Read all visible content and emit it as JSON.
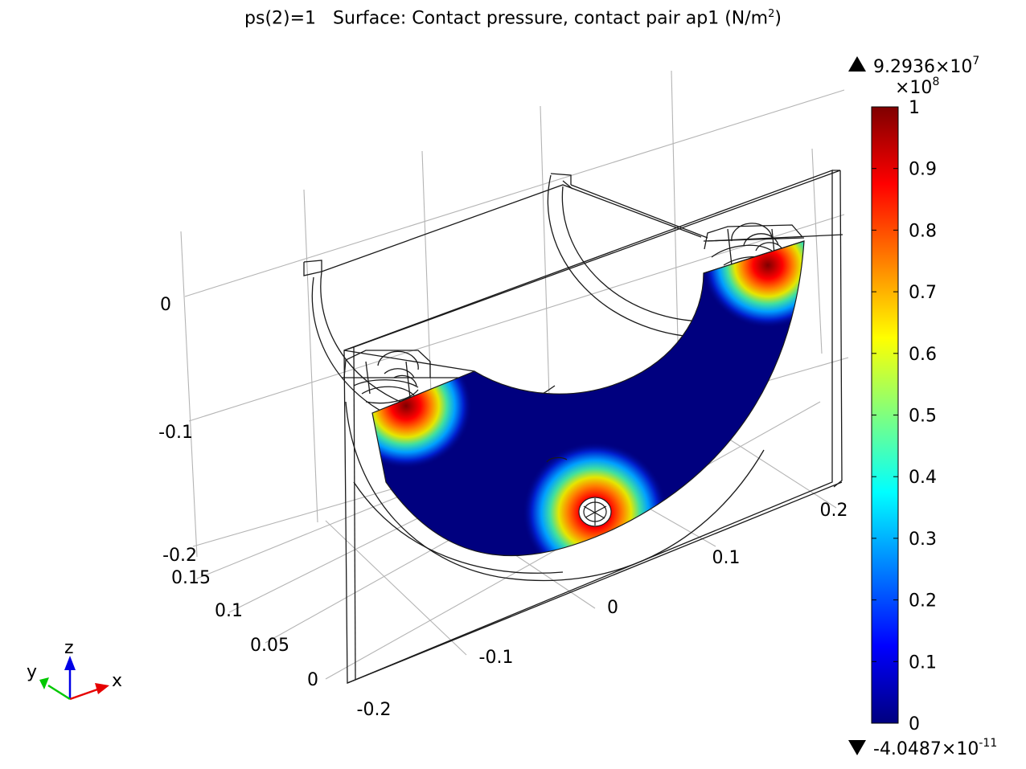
{
  "title": {
    "parameter": "ps(2)=1",
    "description": "Surface: Contact pressure, contact pair ap1 (N/m",
    "unit_exponent": "2",
    "closing": ")"
  },
  "colorbar": {
    "max_mantissa": "9.2936×10",
    "max_exponent": "7",
    "min_mantissa": "-4.0487×10",
    "min_exponent": "-11",
    "multiplier_base": "×10",
    "multiplier_exponent": "8",
    "ticks": [
      "1",
      "0.9",
      "0.8",
      "0.7",
      "0.6",
      "0.5",
      "0.4",
      "0.3",
      "0.2",
      "0.1",
      "0"
    ],
    "colormap": [
      "#00007f",
      "#0000ff",
      "#007fff",
      "#00ffff",
      "#7fff7f",
      "#ffff00",
      "#ff7f00",
      "#ff0000",
      "#7f0000"
    ]
  },
  "axes": {
    "x_ticks": [
      "-0.2",
      "-0.1",
      "0",
      "0.1",
      "0.2"
    ],
    "y_ticks": [
      "0",
      "0.05",
      "0.1",
      "0.15"
    ],
    "z_ticks": [
      "0",
      "-0.1",
      "-0.2"
    ]
  },
  "triad": {
    "x_label": "x",
    "y_label": "y",
    "z_label": "z",
    "x_color": "#e60000",
    "y_color": "#00c800",
    "z_color": "#0000e6"
  }
}
